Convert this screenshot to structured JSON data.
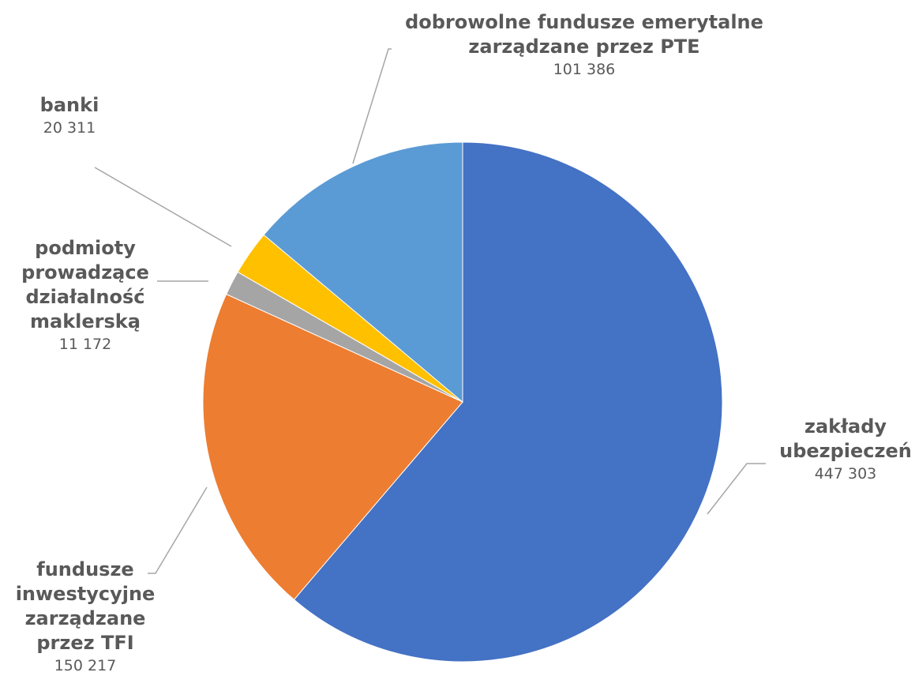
{
  "chart_data": {
    "type": "pie",
    "start_angle_deg": 0,
    "direction": "clockwise",
    "slices": [
      {
        "name": "zakłady ubezpieczeń",
        "label_lines": [
          "zakłady",
          "ubezpieczeń"
        ],
        "value": 447303,
        "value_label": "447 303",
        "color": "#4472c4"
      },
      {
        "name": "fundusze inwestycyjne zarządzane przez TFI",
        "label_lines": [
          "fundusze",
          "inwestycyjne",
          "zarządzane",
          "przez TFI"
        ],
        "value": 150217,
        "value_label": "150 217",
        "color": "#ed7d31"
      },
      {
        "name": "podmioty prowadzące działalność maklerską",
        "label_lines": [
          "podmioty",
          "prowadzące",
          "działalność",
          "maklerską"
        ],
        "value": 11172,
        "value_label": "11 172",
        "color": "#a5a5a5"
      },
      {
        "name": "banki",
        "label_lines": [
          "banki"
        ],
        "value": 20311,
        "value_label": "20 311",
        "color": "#ffc000"
      },
      {
        "name": "dobrowolne fundusze emerytalne zarządzane przez PTE",
        "label_lines": [
          "dobrowolne fundusze emerytalne",
          "zarządzane przez PTE"
        ],
        "value": 101386,
        "value_label": "101 386",
        "color": "#5b9bd5"
      }
    ]
  }
}
